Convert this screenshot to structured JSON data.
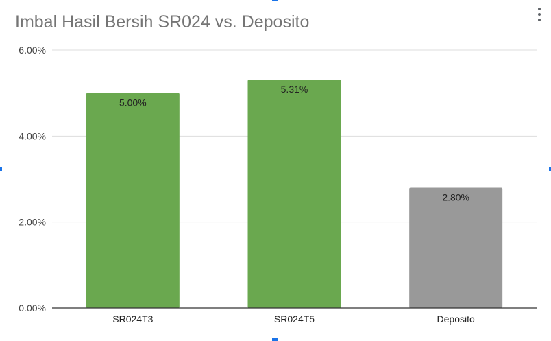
{
  "chart_data": {
    "type": "bar",
    "title": "Imbal Hasil Bersih SR024 vs. Deposito",
    "categories": [
      "SR024T3",
      "SR024T5",
      "Deposito"
    ],
    "values": [
      5.0,
      5.31,
      2.8
    ],
    "data_labels": [
      "5.00%",
      "5.31%",
      "2.80%"
    ],
    "bar_colors": [
      "#6aa84f",
      "#6aa84f",
      "#999999"
    ],
    "ylim": [
      0,
      6
    ],
    "yticks": [
      0,
      2,
      4,
      6
    ],
    "ytick_labels": [
      "0.00%",
      "2.00%",
      "4.00%",
      "6.00%"
    ],
    "xlabel": "",
    "ylabel": "",
    "grid": true,
    "legend": "none"
  },
  "colors": {
    "title": "#757575",
    "gridline": "#dddddd",
    "baseline": "#333333",
    "selection_handle": "#1a73e8"
  },
  "icons": {
    "menu": "more-vertical-icon"
  }
}
